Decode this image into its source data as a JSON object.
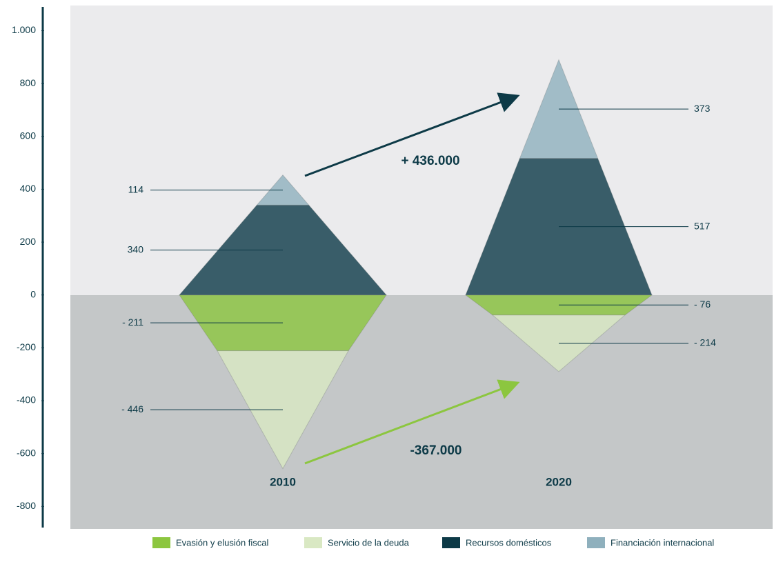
{
  "chart_data": {
    "type": "bar",
    "stacked": true,
    "categories": [
      "2010",
      "2020"
    ],
    "series": [
      {
        "name": "Evasión y elusión fiscal",
        "color": "#8cc63f",
        "values": [
          -211,
          -76
        ],
        "value_labels": [
          "- 211",
          "- 76"
        ]
      },
      {
        "name": "Servicio de la deuda",
        "color": "#d9e8c3",
        "values": [
          -446,
          -214
        ],
        "value_labels": [
          "- 446",
          "- 214"
        ]
      },
      {
        "name": "Recursos domésticos",
        "color": "#0d3a47",
        "values": [
          340,
          517
        ]
      },
      {
        "name": "Financiación internacional",
        "color": "#8fb0bd",
        "values": [
          114,
          373
        ]
      }
    ],
    "ylim": [
      -880,
      1090
    ],
    "yticks": [
      {
        "value": 1000,
        "label": "1.000"
      },
      800,
      600,
      400,
      200,
      0,
      -200,
      -400,
      -600,
      -800
    ],
    "annotations": [
      {
        "text": "+ 436.000"
      },
      {
        "text": "-367.000"
      }
    ],
    "legend": "bottom"
  }
}
